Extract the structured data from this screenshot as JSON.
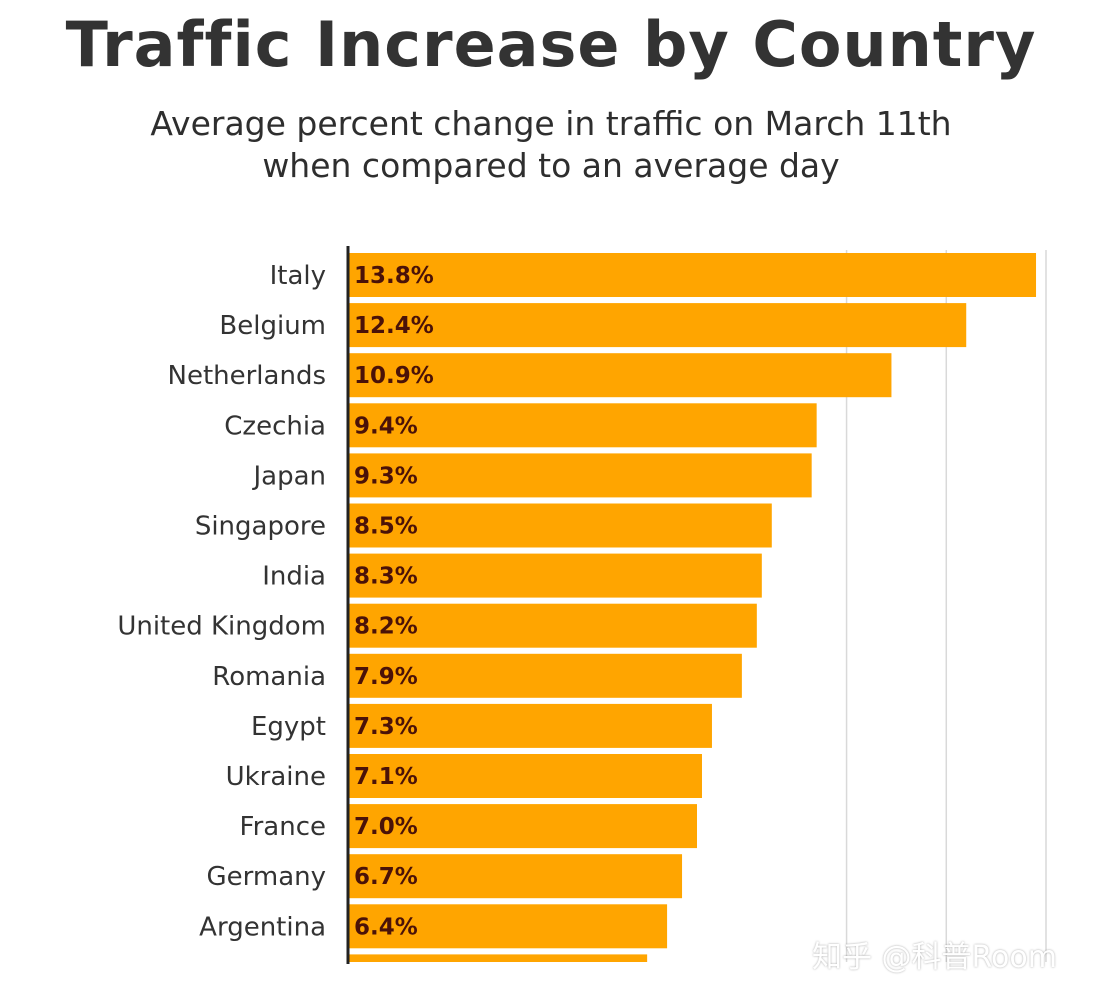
{
  "colors": {
    "bar": "#FFA500",
    "grid": "#d9d9d9",
    "axis": "#222222",
    "label": "#333333",
    "value": "#4a1208"
  },
  "watermark": "知乎 @科普Room",
  "chart_data": {
    "type": "bar",
    "orientation": "horizontal",
    "title": "Traffic Increase by Country",
    "subtitle": [
      "Average percent change in traffic on March 11th",
      "when compared to an average day"
    ],
    "xlabel": "",
    "ylabel": "",
    "categories": [
      "Italy",
      "Belgium",
      "Netherlands",
      "Czechia",
      "Japan",
      "Singapore",
      "India",
      "United Kingdom",
      "Romania",
      "Egypt",
      "Ukraine",
      "France",
      "Germany",
      "Argentina"
    ],
    "values": [
      13.8,
      12.4,
      10.9,
      9.4,
      9.3,
      8.5,
      8.3,
      8.2,
      7.9,
      7.3,
      7.1,
      7.0,
      6.7,
      6.4
    ],
    "value_labels": [
      "13.8%",
      "12.4%",
      "10.9%",
      "9.4%",
      "9.3%",
      "8.5%",
      "8.3%",
      "8.2%",
      "7.9%",
      "7.3%",
      "7.1%",
      "7.0%",
      "6.7%",
      "6.4%"
    ],
    "partial_next_value": 6.0,
    "xlim": [
      0,
      14
    ],
    "gridlines": [
      10,
      12,
      14
    ],
    "grid": true
  }
}
